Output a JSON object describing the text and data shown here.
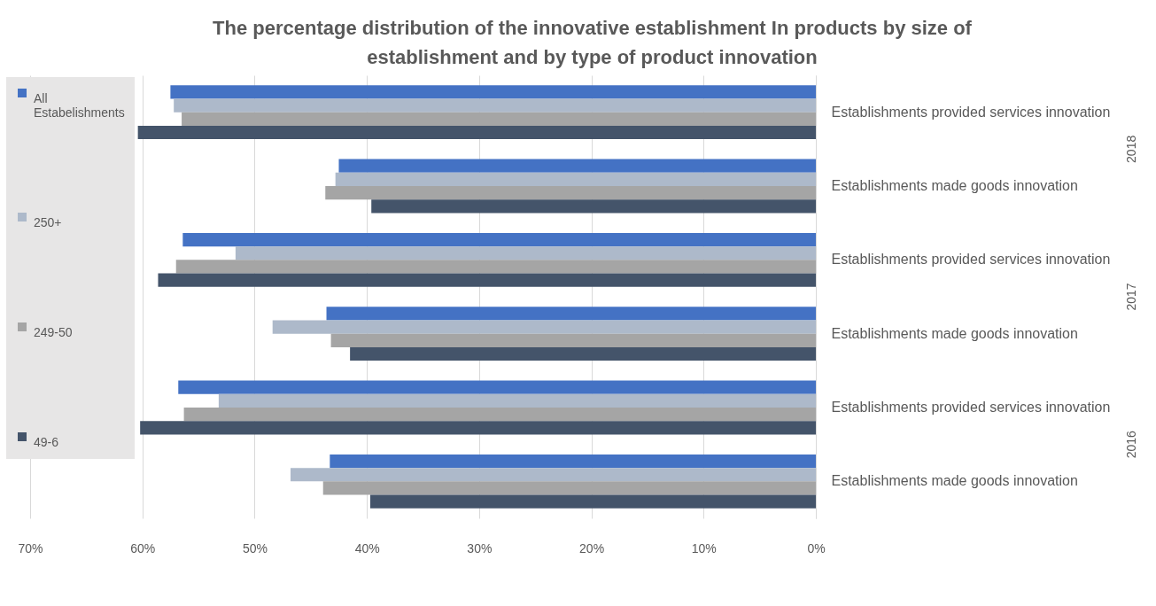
{
  "chart_data": {
    "type": "bar",
    "orientation": "horizontal",
    "title": "The percentage distribution of the innovative establishment In products by size of establishment and by type of product innovation",
    "categories": [
      "Establishments provided services innovation",
      "Establishments made goods innovation",
      "Establishments provided services innovation",
      "Establishments made goods innovation",
      "Establishments provided services innovation",
      "Establishments made goods innovation"
    ],
    "annotations": [
      "2018",
      "2017",
      "2016"
    ],
    "series": [
      {
        "name": "All Estabelishments",
        "color": "#4472c4",
        "values": [
          57.5,
          42.5,
          56.4,
          43.6,
          56.8,
          43.3
        ]
      },
      {
        "name": "250+",
        "color": "#adb9ca",
        "values": [
          57.2,
          42.8,
          51.7,
          48.4,
          53.2,
          46.8
        ]
      },
      {
        "name": "249-50",
        "color": "#a5a5a5",
        "values": [
          56.5,
          43.7,
          57.0,
          43.2,
          56.3,
          43.9
        ]
      },
      {
        "name": "49-6",
        "color": "#44546a",
        "values": [
          60.4,
          39.6,
          58.6,
          41.5,
          60.2,
          39.7
        ]
      }
    ],
    "xlim": [
      70,
      0
    ],
    "xticks": [
      {
        "value": 70,
        "label": "70%"
      },
      {
        "value": 60,
        "label": "60%"
      },
      {
        "value": 50,
        "label": "50%"
      },
      {
        "value": 40,
        "label": "40%"
      },
      {
        "value": 30,
        "label": "30%"
      },
      {
        "value": 20,
        "label": "20%"
      },
      {
        "value": 10,
        "label": "10%"
      },
      {
        "value": 0,
        "label": "0%"
      }
    ],
    "grid": "x",
    "legend": "left"
  }
}
